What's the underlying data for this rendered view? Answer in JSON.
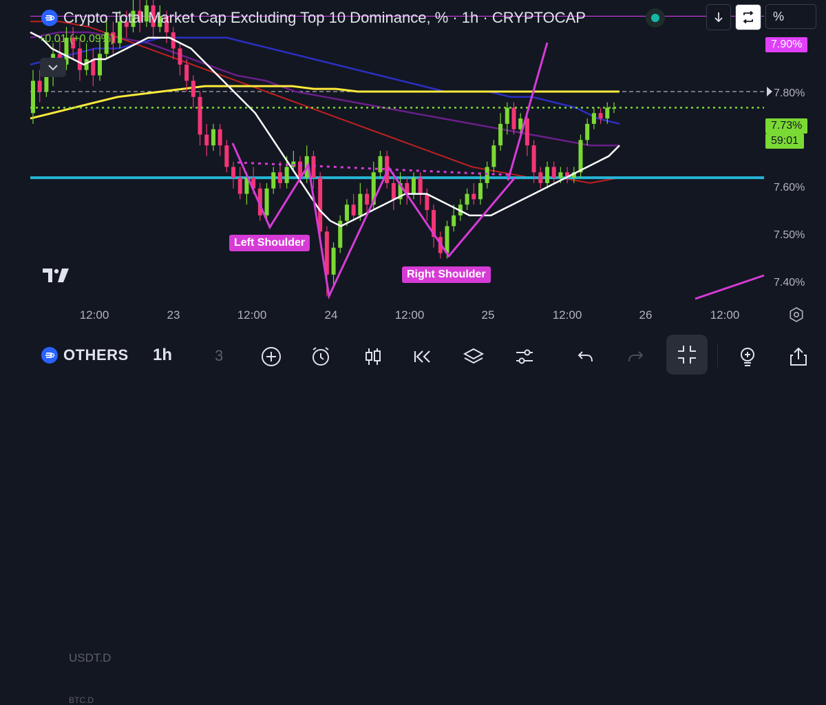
{
  "header": {
    "title": "Crypto Total Market Cap Excluding Top 10 Dominance, % · 1h · CRYPTOCAP",
    "change": "+0.01 (+0.09%)",
    "percent_label": "%",
    "status_color": "#14b8a6"
  },
  "chart_data": {
    "type": "candlestick",
    "x_ticks": [
      "12:00",
      "23",
      "12:00",
      "24",
      "12:00",
      "25",
      "12:00",
      "26",
      "12:00"
    ],
    "y_ticks": [
      "7.80%",
      "7.60%",
      "7.50%",
      "7.40%"
    ],
    "y_range": [
      7.37,
      7.93
    ],
    "price_tags": {
      "resistance": "7.90%",
      "last_price": "7.73%",
      "countdown": "59:01"
    },
    "annotations": {
      "left_shoulder": "Left Shoulder",
      "right_shoulder": "Right Shoulder"
    },
    "colors": {
      "up": "#7bd934",
      "down": "#f23674",
      "ma_fast": "#ffffff",
      "ma_mid": "#2b2fc4",
      "ma_slow": "#ffeb3b",
      "ma_red": "#c02020",
      "ma_purple": "#6a1f8a",
      "support": "#26b5d6",
      "pattern": "#d63bd6"
    },
    "levels": {
      "resistance": 7.9,
      "support": 7.6,
      "last": 7.73,
      "dashed_ref": 7.76,
      "neckline": [
        7.655,
        7.635
      ]
    },
    "candles": [
      [
        7.72,
        7.78,
        7.8,
        7.7
      ],
      [
        7.78,
        7.76,
        7.8,
        7.74
      ],
      [
        7.76,
        7.79,
        7.82,
        7.75
      ],
      [
        7.79,
        7.83,
        7.85,
        7.77
      ],
      [
        7.83,
        7.81,
        7.86,
        7.79
      ],
      [
        7.81,
        7.86,
        7.88,
        7.8
      ],
      [
        7.86,
        7.84,
        7.88,
        7.82
      ],
      [
        7.84,
        7.8,
        7.86,
        7.78
      ],
      [
        7.8,
        7.82,
        7.85,
        7.79
      ],
      [
        7.82,
        7.79,
        7.84,
        7.77
      ],
      [
        7.79,
        7.83,
        7.86,
        7.78
      ],
      [
        7.83,
        7.87,
        7.89,
        7.82
      ],
      [
        7.87,
        7.85,
        7.89,
        7.83
      ],
      [
        7.85,
        7.89,
        7.91,
        7.84
      ],
      [
        7.89,
        7.88,
        7.91,
        7.86
      ],
      [
        7.88,
        7.91,
        7.93,
        7.87
      ],
      [
        7.91,
        7.89,
        7.93,
        7.87
      ],
      [
        7.89,
        7.92,
        7.94,
        7.88
      ],
      [
        7.92,
        7.88,
        7.93,
        7.86
      ],
      [
        7.88,
        7.9,
        7.92,
        7.87
      ],
      [
        7.9,
        7.87,
        7.91,
        7.85
      ],
      [
        7.87,
        7.84,
        7.88,
        7.82
      ],
      [
        7.84,
        7.81,
        7.85,
        7.79
      ],
      [
        7.81,
        7.78,
        7.82,
        7.76
      ],
      [
        7.78,
        7.75,
        7.79,
        7.73
      ],
      [
        7.75,
        7.68,
        7.76,
        7.66
      ],
      [
        7.68,
        7.66,
        7.7,
        7.64
      ],
      [
        7.66,
        7.69,
        7.7,
        7.65
      ],
      [
        7.69,
        7.66,
        7.7,
        7.64
      ],
      [
        7.66,
        7.62,
        7.67,
        7.61
      ],
      [
        7.62,
        7.6,
        7.63,
        7.58
      ],
      [
        7.6,
        7.57,
        7.62,
        7.56
      ],
      [
        7.57,
        7.6,
        7.61,
        7.55
      ],
      [
        7.6,
        7.58,
        7.62,
        7.57
      ],
      [
        7.58,
        7.53,
        7.59,
        7.52
      ],
      [
        7.53,
        7.58,
        7.59,
        7.52
      ],
      [
        7.58,
        7.61,
        7.62,
        7.57
      ],
      [
        7.61,
        7.59,
        7.63,
        7.58
      ],
      [
        7.59,
        7.62,
        7.64,
        7.58
      ],
      [
        7.62,
        7.63,
        7.65,
        7.61
      ],
      [
        7.63,
        7.6,
        7.64,
        7.59
      ],
      [
        7.6,
        7.64,
        7.66,
        7.59
      ],
      [
        7.64,
        7.6,
        7.65,
        7.58
      ],
      [
        7.6,
        7.5,
        7.61,
        7.48
      ],
      [
        7.5,
        7.42,
        7.51,
        7.38
      ],
      [
        7.42,
        7.47,
        7.48,
        7.4
      ],
      [
        7.47,
        7.52,
        7.53,
        7.46
      ],
      [
        7.52,
        7.55,
        7.56,
        7.51
      ],
      [
        7.55,
        7.53,
        7.57,
        7.52
      ],
      [
        7.53,
        7.57,
        7.59,
        7.52
      ],
      [
        7.57,
        7.55,
        7.58,
        7.53
      ],
      [
        7.55,
        7.61,
        7.63,
        7.54
      ],
      [
        7.61,
        7.64,
        7.65,
        7.6
      ],
      [
        7.64,
        7.59,
        7.65,
        7.58
      ],
      [
        7.59,
        7.56,
        7.61,
        7.54
      ],
      [
        7.56,
        7.59,
        7.61,
        7.55
      ],
      [
        7.59,
        7.57,
        7.6,
        7.55
      ],
      [
        7.57,
        7.6,
        7.61,
        7.56
      ],
      [
        7.6,
        7.57,
        7.61,
        7.55
      ],
      [
        7.57,
        7.54,
        7.58,
        7.52
      ],
      [
        7.54,
        7.49,
        7.55,
        7.47
      ],
      [
        7.49,
        7.46,
        7.5,
        7.45
      ],
      [
        7.46,
        7.51,
        7.52,
        7.45
      ],
      [
        7.51,
        7.53,
        7.55,
        7.5
      ],
      [
        7.53,
        7.55,
        7.56,
        7.52
      ],
      [
        7.55,
        7.57,
        7.58,
        7.54
      ],
      [
        7.57,
        7.56,
        7.59,
        7.55
      ],
      [
        7.56,
        7.59,
        7.61,
        7.55
      ],
      [
        7.59,
        7.62,
        7.63,
        7.58
      ],
      [
        7.62,
        7.66,
        7.67,
        7.61
      ],
      [
        7.66,
        7.7,
        7.72,
        7.65
      ],
      [
        7.7,
        7.73,
        7.74,
        7.68
      ],
      [
        7.73,
        7.69,
        7.74,
        7.68
      ],
      [
        7.69,
        7.71,
        7.72,
        7.68
      ],
      [
        7.71,
        7.66,
        7.72,
        7.64
      ],
      [
        7.66,
        7.61,
        7.67,
        7.59
      ],
      [
        7.61,
        7.59,
        7.62,
        7.58
      ],
      [
        7.59,
        7.62,
        7.63,
        7.58
      ],
      [
        7.62,
        7.6,
        7.63,
        7.59
      ],
      [
        7.6,
        7.61,
        7.62,
        7.59
      ],
      [
        7.61,
        7.6,
        7.62,
        7.59
      ],
      [
        7.6,
        7.61,
        7.62,
        7.59
      ],
      [
        7.61,
        7.67,
        7.68,
        7.6
      ],
      [
        7.67,
        7.7,
        7.71,
        7.66
      ],
      [
        7.7,
        7.72,
        7.73,
        7.69
      ],
      [
        7.72,
        7.71,
        7.73,
        7.7
      ],
      [
        7.71,
        7.73,
        7.74,
        7.7
      ],
      [
        7.73,
        7.73,
        7.74,
        7.72
      ]
    ],
    "ma_fast": [
      7.87,
      7.86,
      7.84,
      7.83,
      7.82,
      7.81,
      7.82,
      7.82,
      7.83,
      7.84,
      7.85,
      7.86,
      7.86,
      7.86,
      7.85,
      7.84,
      7.82,
      7.8,
      7.78,
      7.76,
      7.74,
      7.72,
      7.69,
      7.66,
      7.63,
      7.6,
      7.57,
      7.54,
      7.52,
      7.51,
      7.52,
      7.53,
      7.54,
      7.55,
      7.56,
      7.57,
      7.57,
      7.57,
      7.56,
      7.55,
      7.54,
      7.53,
      7.53,
      7.53,
      7.54,
      7.55,
      7.56,
      7.57,
      7.58,
      7.59,
      7.6,
      7.61,
      7.62,
      7.63,
      7.64,
      7.66
    ],
    "ma_mid": [
      7.81,
      7.82,
      7.83,
      7.84,
      7.84,
      7.85,
      7.86,
      7.86,
      7.86,
      7.86,
      7.85,
      7.84,
      7.83,
      7.82,
      7.81,
      7.8,
      7.79,
      7.78,
      7.77,
      7.76,
      7.76,
      7.76,
      7.75,
      7.75,
      7.74,
      7.73,
      7.71,
      7.7
    ],
    "ma_slow": [
      7.71,
      7.72,
      7.73,
      7.74,
      7.75,
      7.755,
      7.76,
      7.765,
      7.77,
      7.77,
      7.77,
      7.77,
      7.77,
      7.765,
      7.765,
      7.76,
      7.76,
      7.76,
      7.76,
      7.76,
      7.76,
      7.76,
      7.76,
      7.76,
      7.76,
      7.76,
      7.76,
      7.76
    ],
    "ma_red": [
      7.89,
      7.89,
      7.88,
      7.86,
      7.84,
      7.82,
      7.8,
      7.78,
      7.76,
      7.74,
      7.72,
      7.7,
      7.68,
      7.66,
      7.64,
      7.62,
      7.61,
      7.6,
      7.6,
      7.59,
      7.6
    ],
    "ma_purple": [
      7.86,
      7.87,
      7.87,
      7.86,
      7.85,
      7.83,
      7.81,
      7.79,
      7.78,
      7.76,
      7.75,
      7.74,
      7.73,
      7.72,
      7.71,
      7.7,
      7.69,
      7.68,
      7.67,
      7.66,
      7.66
    ]
  },
  "toolbar": {
    "symbol": "OTHERS",
    "interval": "1h",
    "ghost_top": "USDT.D",
    "ghost_bottom": "BTC.D",
    "ghost_sym": "3"
  }
}
